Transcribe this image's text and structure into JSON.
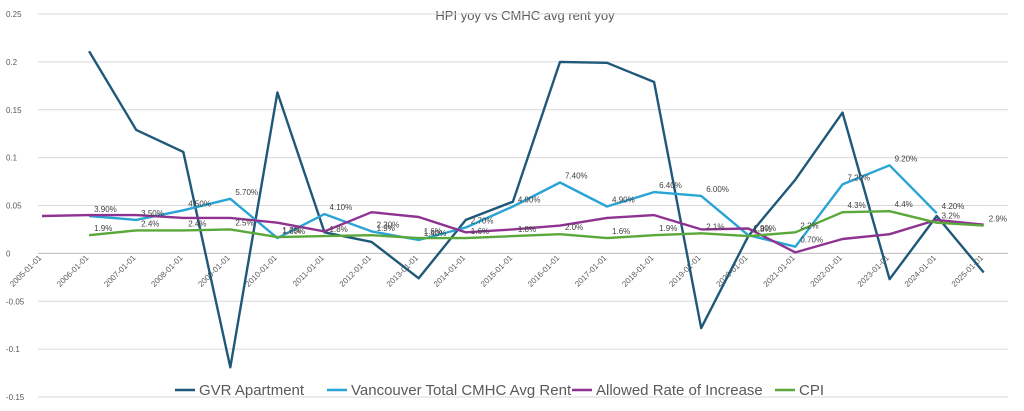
{
  "chart_data": {
    "type": "line",
    "title": "HPI yoy vs CMHC avg rent yoy",
    "ylim": [
      -0.15,
      0.25
    ],
    "yticks": [
      "0.25",
      "0.2",
      "0.15",
      "0.1",
      "0.05",
      "0",
      "-0.05",
      "-0.1",
      "-0.15"
    ],
    "ytick_values": [
      0.25,
      0.2,
      0.15,
      0.1,
      0.05,
      0,
      -0.05,
      -0.1,
      -0.15
    ],
    "categories": [
      "2005-01-01",
      "2006-01-01",
      "2007-01-01",
      "2008-01-01",
      "2009-01-01",
      "2010-01-01",
      "2011-01-01",
      "2012-01-01",
      "2013-01-01",
      "2014-01-01",
      "2015-01-01",
      "2016-01-01",
      "2017-01-01",
      "2018-01-01",
      "2019-01-01",
      "2020-01-01",
      "2021-01-01",
      "2022-01-01",
      "2023-01-01",
      "2024-01-01",
      "2025-01-01"
    ],
    "grid": true,
    "legend_position": "bottom",
    "series": [
      {
        "name": "GVR Apartment",
        "color": "#1f5878",
        "values": [
          null,
          0.211,
          0.129,
          0.106,
          -0.119,
          0.168,
          0.022,
          0.012,
          -0.026,
          0.035,
          0.054,
          0.2,
          0.199,
          0.179,
          -0.078,
          0.018,
          0.077,
          0.147,
          -0.027,
          0.039,
          -0.02
        ],
        "labels": []
      },
      {
        "name": "Vancouver Total CMHC Avg Rent",
        "color": "#2aa4d4",
        "values": [
          null,
          0.039,
          0.035,
          0.045,
          0.057,
          0.016,
          0.041,
          0.023,
          0.014,
          0.027,
          0.049,
          0.074,
          0.049,
          0.064,
          0.06,
          0.019,
          0.007,
          0.072,
          0.092,
          0.042,
          null
        ],
        "labels": [
          "",
          "3.90%",
          "3.50%",
          "4.50%",
          "5.70%",
          "1.60%",
          "4.10%",
          "2.30%",
          "1.40%",
          "2.70%",
          "4.90%",
          "7.40%",
          "4.90%",
          "6.40%",
          "6.00%",
          "1.90%",
          "0.70%",
          "7.20%",
          "9.20%",
          "4.20%",
          ""
        ]
      },
      {
        "name": "Allowed Rate of Increase",
        "color": "#8e3391",
        "values": [
          0.039,
          0.04,
          0.04,
          0.037,
          0.037,
          0.032,
          0.023,
          0.043,
          0.038,
          0.022,
          0.025,
          0.029,
          0.037,
          0.04,
          0.025,
          0.026,
          0.001,
          0.015,
          0.02,
          0.035,
          0.03
        ],
        "labels": []
      },
      {
        "name": "CPI",
        "color": "#5aa83a",
        "values": [
          null,
          0.019,
          0.024,
          0.024,
          0.025,
          0.017,
          0.018,
          0.019,
          0.016,
          0.016,
          0.018,
          0.02,
          0.016,
          0.019,
          0.021,
          0.018,
          0.022,
          0.043,
          0.044,
          0.032,
          0.029
        ],
        "labels": [
          "",
          "1.9%",
          "2.4%",
          "2.4%",
          "2.5%",
          "1.7%",
          "1.8%",
          "1.9%",
          "1.6%",
          "1.6%",
          "1.8%",
          "2.0%",
          "1.6%",
          "1.9%",
          "2.1%",
          "1.8%",
          "2.2%",
          "4.3%",
          "4.4%",
          "3.2%",
          "2.9%"
        ]
      }
    ]
  }
}
